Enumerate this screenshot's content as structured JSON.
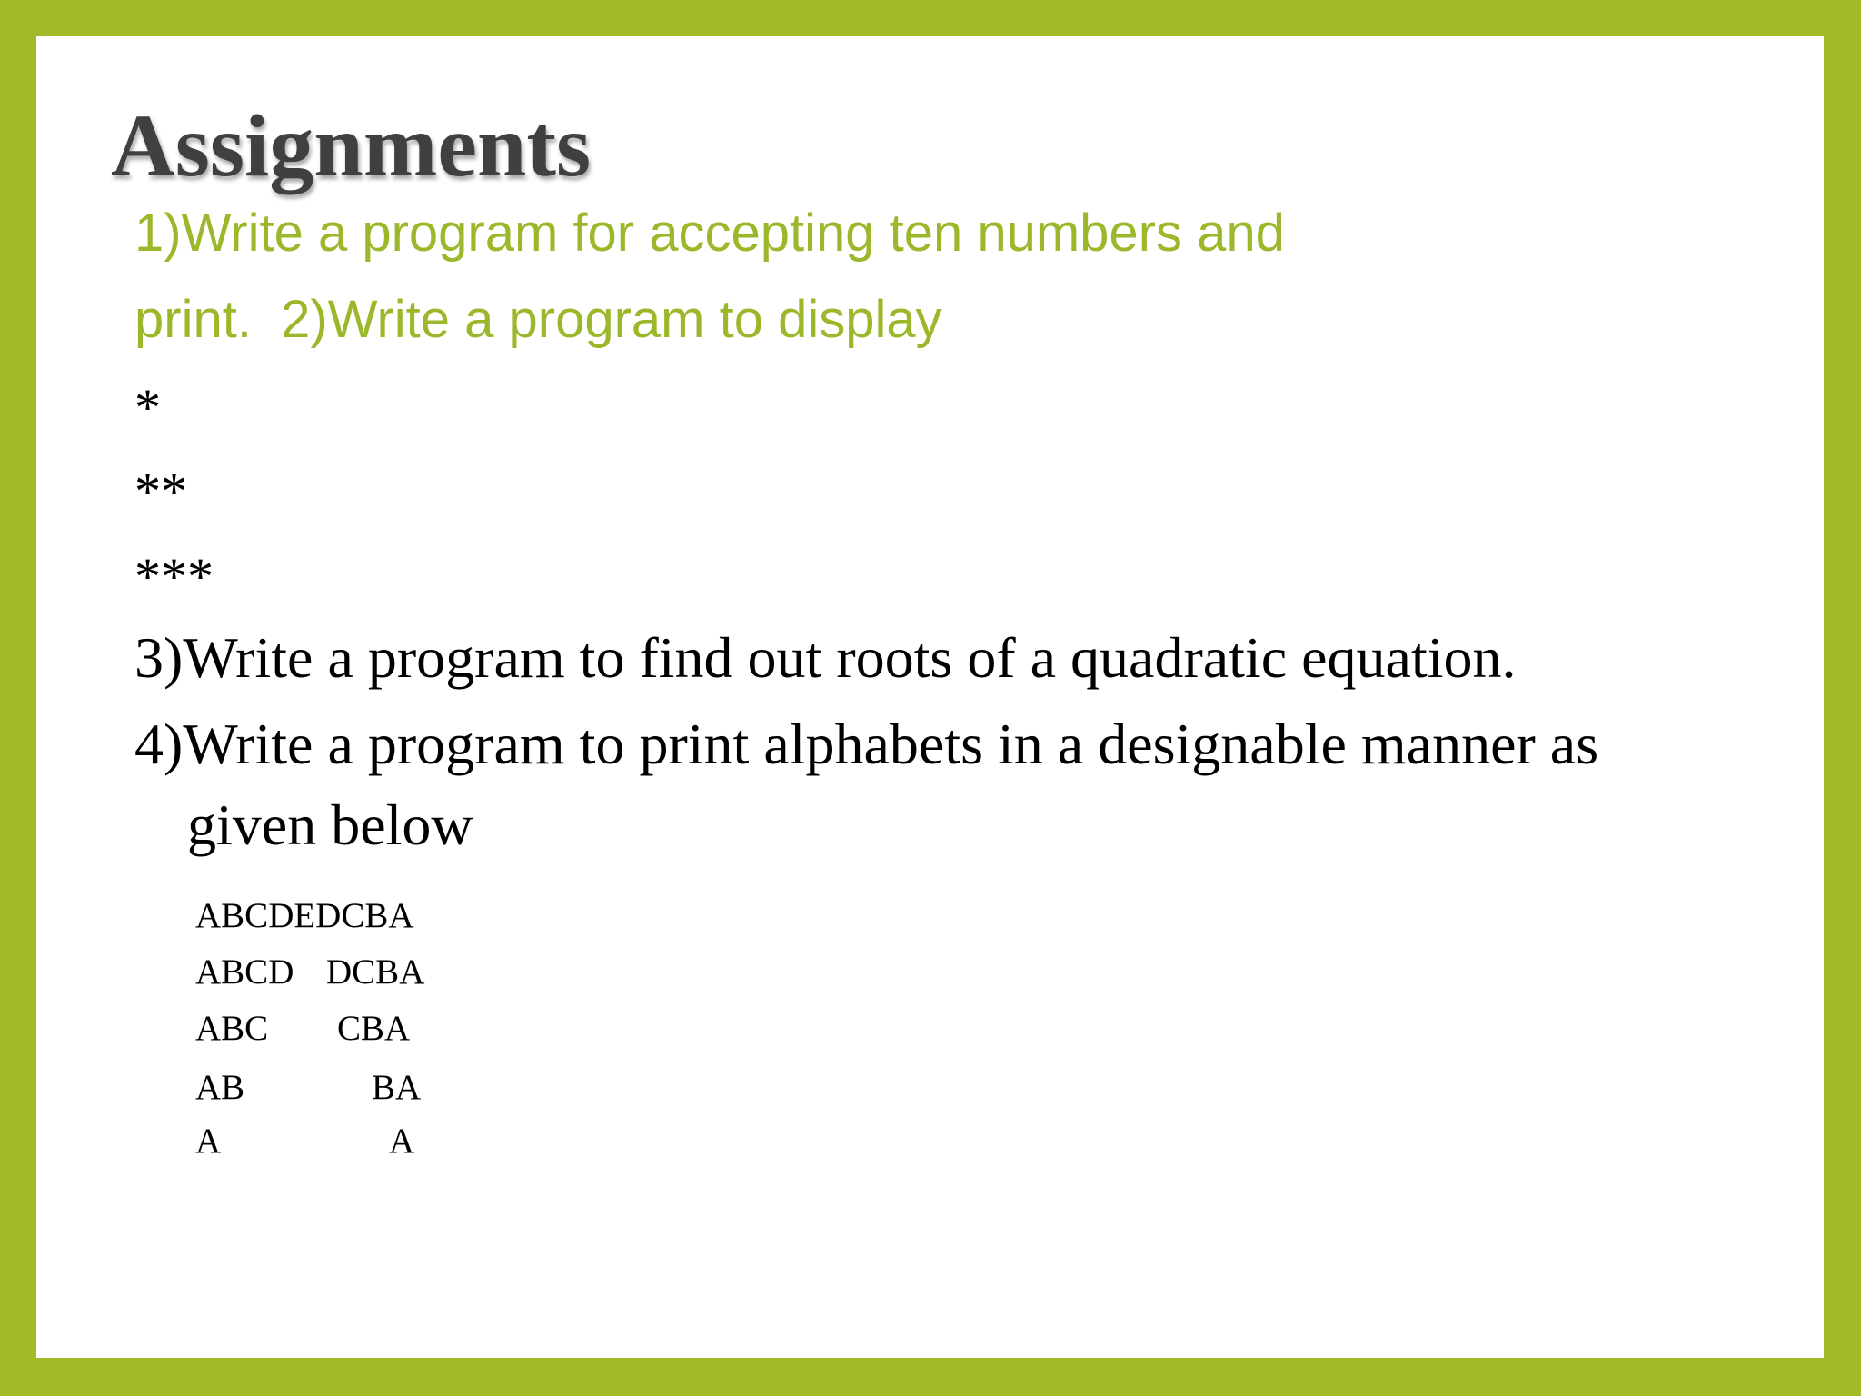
{
  "title": "Assignments",
  "green_lines": [
    "1)Write a program for accepting ten numbers and",
    "print.  2)Write a program to display"
  ],
  "stars": [
    "*",
    "**",
    "***"
  ],
  "item3": "3)Write a program to find out roots of a quadratic equation.",
  "item4": {
    "line1": "4)Write a program to print alphabets in a designable manner as",
    "line2": "given below"
  },
  "pattern": [
    {
      "left": "ABCDEDCBA",
      "right": ""
    },
    {
      "left": "ABCD",
      "right": "DCBA"
    },
    {
      "left": "ABC",
      "right": "CBA"
    },
    {
      "left": "AB",
      "right": "BA"
    },
    {
      "left": "A",
      "right": "A"
    }
  ],
  "colors": {
    "frame": "#a4b928",
    "accent_text": "#9bb72a",
    "title": "#404040"
  }
}
